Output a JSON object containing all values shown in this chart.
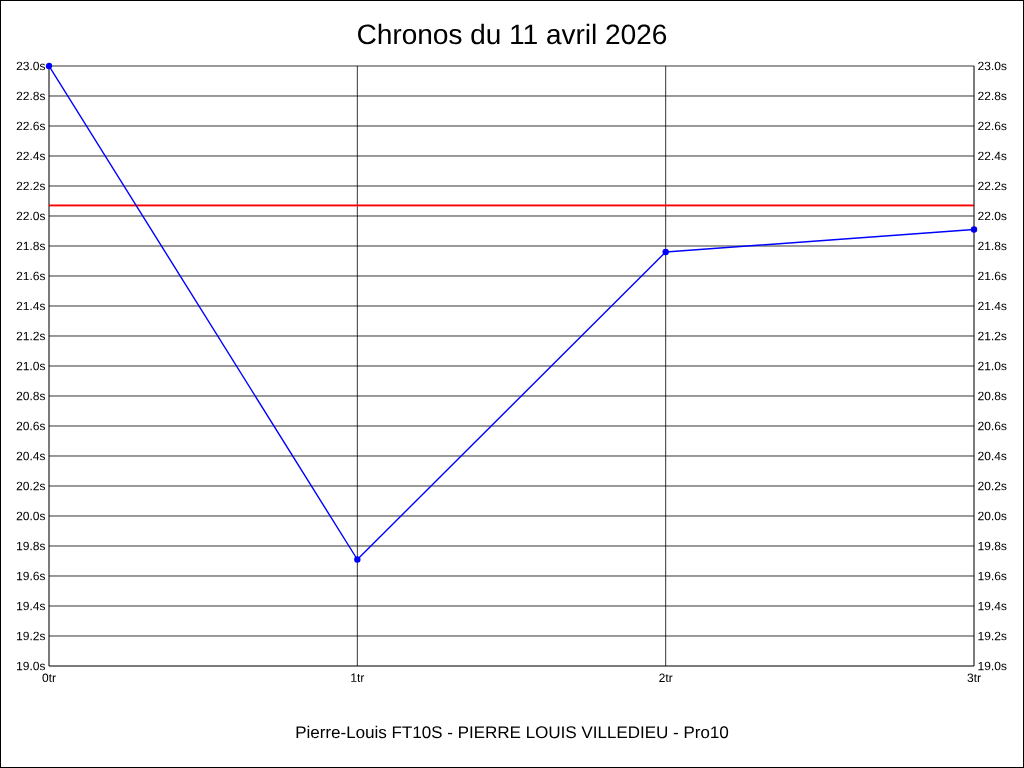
{
  "chart_data": {
    "type": "line",
    "title": "Chronos du 11 avril 2026",
    "xlabel": "Pierre-Louis FT10S - PIERRE LOUIS VILLEDIEU - Pro10",
    "x": [
      0,
      1,
      2,
      3
    ],
    "series": [
      {
        "color": "#0000ff",
        "values": [
          23.0,
          19.71,
          21.76,
          21.91
        ]
      }
    ],
    "xlim": [
      0,
      3
    ],
    "xticks": [
      {
        "value": 0,
        "label": "0tr"
      },
      {
        "value": 1,
        "label": "1tr"
      },
      {
        "value": 2,
        "label": "2tr"
      },
      {
        "value": 3,
        "label": "3tr"
      }
    ],
    "ylim": [
      19.0,
      23.0
    ],
    "yticks": [
      {
        "value": 19.0,
        "label": "19.0s"
      },
      {
        "value": 19.2,
        "label": "19.2s"
      },
      {
        "value": 19.4,
        "label": "19.4s"
      },
      {
        "value": 19.6,
        "label": "19.6s"
      },
      {
        "value": 19.8,
        "label": "19.8s"
      },
      {
        "value": 20.0,
        "label": "20.0s"
      },
      {
        "value": 20.2,
        "label": "20.2s"
      },
      {
        "value": 20.4,
        "label": "20.4s"
      },
      {
        "value": 20.6,
        "label": "20.6s"
      },
      {
        "value": 20.8,
        "label": "20.8s"
      },
      {
        "value": 21.0,
        "label": "21.0s"
      },
      {
        "value": 21.2,
        "label": "21.2s"
      },
      {
        "value": 21.4,
        "label": "21.4s"
      },
      {
        "value": 21.6,
        "label": "21.6s"
      },
      {
        "value": 21.8,
        "label": "21.8s"
      },
      {
        "value": 22.0,
        "label": "22.0s"
      },
      {
        "value": 22.2,
        "label": "22.2s"
      },
      {
        "value": 22.4,
        "label": "22.4s"
      },
      {
        "value": 22.6,
        "label": "22.6s"
      },
      {
        "value": 22.8,
        "label": "22.8s"
      },
      {
        "value": 23.0,
        "label": "23.0s"
      }
    ],
    "y2lim": [
      19.0,
      23.0
    ],
    "y2ticks": [
      {
        "value": 19.0,
        "label": "19.0s"
      },
      {
        "value": 19.2,
        "label": "19.2s"
      },
      {
        "value": 19.4,
        "label": "19.4s"
      },
      {
        "value": 19.6,
        "label": "19.6s"
      },
      {
        "value": 19.8,
        "label": "19.8s"
      },
      {
        "value": 20.0,
        "label": "20.0s"
      },
      {
        "value": 20.2,
        "label": "20.2s"
      },
      {
        "value": 20.4,
        "label": "20.4s"
      },
      {
        "value": 20.6,
        "label": "20.6s"
      },
      {
        "value": 20.8,
        "label": "20.8s"
      },
      {
        "value": 21.0,
        "label": "21.0s"
      },
      {
        "value": 21.2,
        "label": "21.2s"
      },
      {
        "value": 21.4,
        "label": "21.4s"
      },
      {
        "value": 21.6,
        "label": "21.6s"
      },
      {
        "value": 21.8,
        "label": "21.8s"
      },
      {
        "value": 22.0,
        "label": "22.0s"
      },
      {
        "value": 22.2,
        "label": "22.2s"
      },
      {
        "value": 22.4,
        "label": "22.4s"
      },
      {
        "value": 22.6,
        "label": "22.6s"
      },
      {
        "value": 22.8,
        "label": "22.8s"
      },
      {
        "value": 23.0,
        "label": "23.0s"
      }
    ],
    "ref_lines": [
      {
        "axis": "y",
        "value": 22.07,
        "color": "#ff0000"
      }
    ],
    "grid": true,
    "marker": "circle",
    "line_style": "solid"
  }
}
